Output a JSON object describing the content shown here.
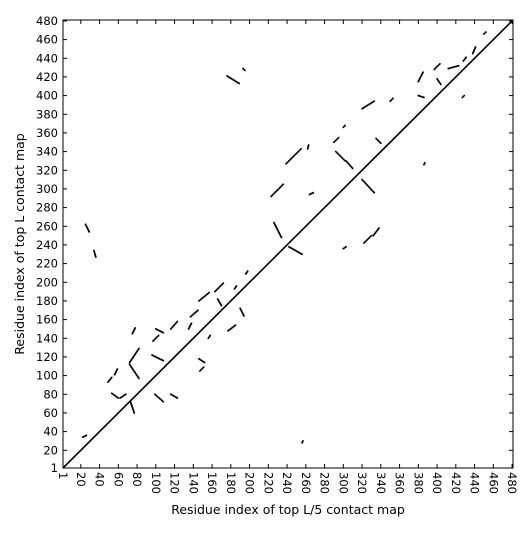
{
  "chart_data": {
    "type": "scatter",
    "title": "",
    "xlabel": "Residue index of top L/5 contact map",
    "ylabel": "Residue index of top L contact map",
    "xlim": [
      1,
      481
    ],
    "ylim": [
      1,
      481
    ],
    "xticks": [
      1,
      20,
      40,
      60,
      80,
      100,
      120,
      140,
      160,
      180,
      200,
      220,
      240,
      260,
      280,
      300,
      320,
      340,
      360,
      380,
      400,
      420,
      440,
      460,
      480
    ],
    "yticks": [
      1,
      20,
      40,
      60,
      80,
      100,
      120,
      140,
      160,
      180,
      200,
      220,
      240,
      260,
      280,
      300,
      320,
      340,
      360,
      380,
      400,
      420,
      440,
      460,
      480
    ],
    "xtick_rotation": -90,
    "grid": false,
    "legend": "none",
    "marker_color": "#000000",
    "diagonal": {
      "from": [
        1,
        1
      ],
      "to": [
        481,
        481
      ]
    },
    "upper_triangle_segments": [
      {
        "from": [
          25,
          262
        ],
        "to": [
          29,
          254
        ]
      },
      {
        "from": [
          34,
          234
        ],
        "to": [
          36,
          227
        ]
      },
      {
        "from": [
          49,
          93
        ],
        "to": [
          53,
          98
        ]
      },
      {
        "from": [
          56,
          101
        ],
        "to": [
          59,
          107
        ]
      },
      {
        "from": [
          72,
          114
        ],
        "to": [
          82,
          129
        ]
      },
      {
        "from": [
          75,
          145
        ],
        "to": [
          78,
          151
        ]
      },
      {
        "from": [
          97,
          137
        ],
        "to": [
          103,
          143
        ]
      },
      {
        "from": [
          100,
          150
        ],
        "to": [
          108,
          146
        ]
      },
      {
        "from": [
          116,
          150
        ],
        "to": [
          123,
          158
        ]
      },
      {
        "from": [
          137,
          163
        ],
        "to": [
          145,
          170
        ]
      },
      {
        "from": [
          146,
          180
        ],
        "to": [
          157,
          189
        ]
      },
      {
        "from": [
          163,
          190
        ],
        "to": [
          172,
          199
        ]
      },
      {
        "from": [
          176,
          421
        ],
        "to": [
          189,
          413
        ]
      },
      {
        "from": [
          193,
          429
        ],
        "to": [
          195,
          427
        ]
      },
      {
        "from": [
          223,
          292
        ],
        "to": [
          236,
          305
        ]
      },
      {
        "from": [
          239,
          327
        ],
        "to": [
          255,
          343
        ]
      },
      {
        "from": [
          262,
          343
        ],
        "to": [
          263,
          347
        ]
      },
      {
        "from": [
          290,
          350
        ],
        "to": [
          295,
          355
        ]
      },
      {
        "from": [
          320,
          386
        ],
        "to": [
          333,
          394
        ]
      },
      {
        "from": [
          350,
          394
        ],
        "to": [
          353,
          397
        ]
      },
      {
        "from": [
          380,
          415
        ],
        "to": [
          385,
          425
        ]
      },
      {
        "from": [
          397,
          428
        ],
        "to": [
          403,
          434
        ]
      },
      {
        "from": [
          412,
          429
        ],
        "to": [
          423,
          432
        ]
      },
      {
        "from": [
          428,
          437
        ],
        "to": [
          431,
          441
        ]
      },
      {
        "from": [
          438,
          445
        ],
        "to": [
          441,
          452
        ]
      },
      {
        "from": [
          450,
          466
        ],
        "to": [
          452,
          468
        ]
      }
    ],
    "lower_triangle_segments": [
      {
        "from": [
          22,
          34
        ],
        "to": [
          26,
          36
        ]
      },
      {
        "from": [
          53,
          81
        ],
        "to": [
          60,
          76
        ]
      },
      {
        "from": [
          62,
          76
        ],
        "to": [
          68,
          80
        ]
      },
      {
        "from": [
          72,
          112
        ],
        "to": [
          82,
          97
        ]
      },
      {
        "from": [
          73,
          72
        ],
        "to": [
          77,
          60
        ]
      },
      {
        "from": [
          96,
          122
        ],
        "to": [
          108,
          116
        ]
      },
      {
        "from": [
          99,
          80
        ],
        "to": [
          108,
          72
        ]
      },
      {
        "from": [
          116,
          80
        ],
        "to": [
          123,
          76
        ]
      },
      {
        "from": [
          135,
          150
        ],
        "to": [
          138,
          156
        ]
      },
      {
        "from": [
          146,
          118
        ],
        "to": [
          152,
          114
        ]
      },
      {
        "from": [
          147,
          105
        ],
        "to": [
          151,
          109
        ]
      },
      {
        "from": [
          156,
          140
        ],
        "to": [
          158,
          143
        ]
      },
      {
        "from": [
          166,
          182
        ],
        "to": [
          170,
          175
        ]
      },
      {
        "from": [
          177,
          148
        ],
        "to": [
          185,
          154
        ]
      },
      {
        "from": [
          184,
          193
        ],
        "to": [
          186,
          196
        ]
      },
      {
        "from": [
          190,
          172
        ],
        "to": [
          194,
          164
        ]
      },
      {
        "from": [
          196,
          209
        ],
        "to": [
          198,
          212
        ]
      },
      {
        "from": [
          226,
          264
        ],
        "to": [
          234,
          248
        ]
      },
      {
        "from": [
          242,
          238
        ],
        "to": [
          256,
          230
        ]
      },
      {
        "from": [
          256,
          28
        ],
        "to": [
          257,
          30
        ]
      },
      {
        "from": [
          264,
          294
        ],
        "to": [
          268,
          296
        ]
      },
      {
        "from": [
          292,
          340
        ],
        "to": [
          302,
          330
        ]
      },
      {
        "from": [
          303,
          330
        ],
        "to": [
          310,
          322
        ]
      },
      {
        "from": [
          300,
          236
        ],
        "to": [
          303,
          238
        ]
      },
      {
        "from": [
          300,
          366
        ],
        "to": [
          302,
          368
        ]
      },
      {
        "from": [
          320,
          310
        ],
        "to": [
          333,
          296
        ]
      },
      {
        "from": [
          322,
          242
        ],
        "to": [
          330,
          250
        ]
      },
      {
        "from": [
          332,
          250
        ],
        "to": [
          338,
          258
        ]
      },
      {
        "from": [
          335,
          354
        ],
        "to": [
          340,
          349
        ]
      },
      {
        "from": [
          380,
          400
        ],
        "to": [
          386,
          398
        ]
      },
      {
        "from": [
          386,
          326
        ],
        "to": [
          387,
          328
        ]
      },
      {
        "from": [
          400,
          418
        ],
        "to": [
          404,
          412
        ]
      },
      {
        "from": [
          427,
          398
        ],
        "to": [
          429,
          400
        ]
      }
    ]
  }
}
